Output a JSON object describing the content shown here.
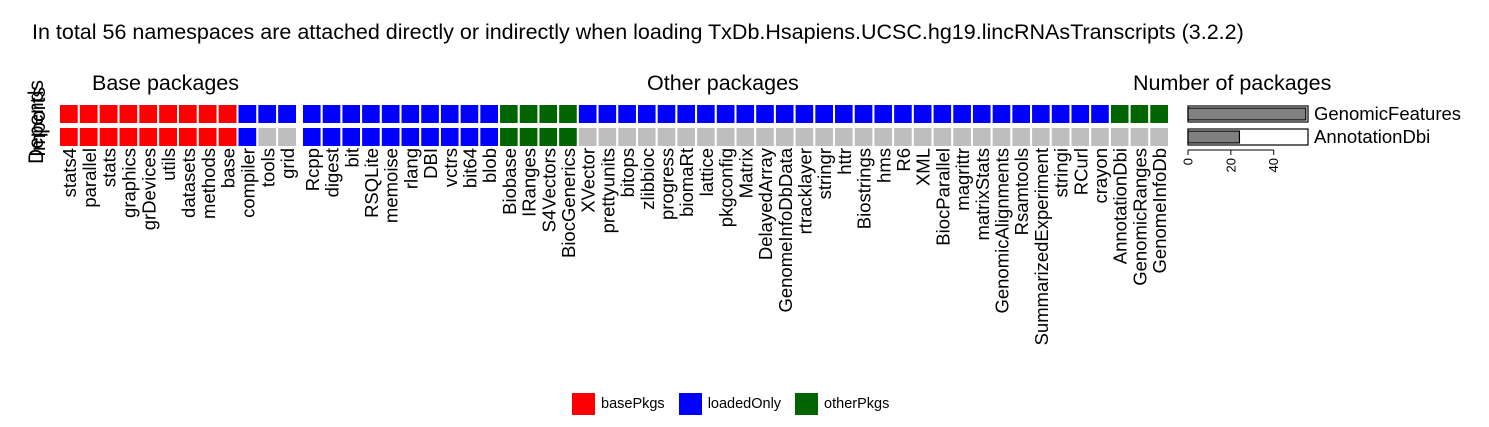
{
  "chart_data": {
    "type": "heatmap",
    "title": "In total 56 namespaces are attached directly or indirectly when loading TxDb.Hsapiens.UCSC.hg19.lincRNAsTranscripts (3.2.2)",
    "rows": [
      "Depends",
      "Imports"
    ],
    "panels": [
      {
        "title": "Base packages",
        "columns": [
          "stats4",
          "parallel",
          "stats",
          "graphics",
          "grDevices",
          "utils",
          "datasets",
          "methods",
          "base",
          "compiler",
          "tools",
          "grid"
        ],
        "cells": [
          [
            "basePkgs",
            "basePkgs",
            "basePkgs",
            "basePkgs",
            "basePkgs",
            "basePkgs",
            "basePkgs",
            "basePkgs",
            "basePkgs",
            "loadedOnly",
            "loadedOnly",
            "loadedOnly"
          ],
          [
            "basePkgs",
            "basePkgs",
            "basePkgs",
            "basePkgs",
            "basePkgs",
            "basePkgs",
            "basePkgs",
            "basePkgs",
            "basePkgs",
            "loadedOnly",
            "none",
            "none"
          ]
        ]
      },
      {
        "title": "Other packages",
        "columns": [
          "Rcpp",
          "digest",
          "bit",
          "RSQLite",
          "memoise",
          "rlang",
          "DBI",
          "vctrs",
          "bit64",
          "blob",
          "Biobase",
          "IRanges",
          "S4Vectors",
          "BiocGenerics",
          "XVector",
          "prettyunits",
          "bitops",
          "zlibbioc",
          "progress",
          "biomaRt",
          "lattice",
          "pkgconfig",
          "Matrix",
          "DelayedArray",
          "GenomeInfoDbData",
          "rtracklayer",
          "stringr",
          "httr",
          "Biostrings",
          "hms",
          "R6",
          "XML",
          "BiocParallel",
          "magrittr",
          "matrixStats",
          "GenomicAlignments",
          "Rsamtools",
          "SummarizedExperiment",
          "stringi",
          "RCurl",
          "crayon",
          "AnnotationDbi",
          "GenomicRanges",
          "GenomeInfoDb"
        ],
        "cells": [
          [
            "loadedOnly",
            "loadedOnly",
            "loadedOnly",
            "loadedOnly",
            "loadedOnly",
            "loadedOnly",
            "loadedOnly",
            "loadedOnly",
            "loadedOnly",
            "loadedOnly",
            "otherPkgs",
            "otherPkgs",
            "otherPkgs",
            "otherPkgs",
            "loadedOnly",
            "loadedOnly",
            "loadedOnly",
            "loadedOnly",
            "loadedOnly",
            "loadedOnly",
            "loadedOnly",
            "loadedOnly",
            "loadedOnly",
            "loadedOnly",
            "loadedOnly",
            "loadedOnly",
            "loadedOnly",
            "loadedOnly",
            "loadedOnly",
            "loadedOnly",
            "loadedOnly",
            "loadedOnly",
            "loadedOnly",
            "loadedOnly",
            "loadedOnly",
            "loadedOnly",
            "loadedOnly",
            "loadedOnly",
            "loadedOnly",
            "loadedOnly",
            "loadedOnly",
            "otherPkgs",
            "otherPkgs",
            "otherPkgs"
          ],
          [
            "loadedOnly",
            "loadedOnly",
            "loadedOnly",
            "loadedOnly",
            "loadedOnly",
            "loadedOnly",
            "loadedOnly",
            "loadedOnly",
            "loadedOnly",
            "loadedOnly",
            "otherPkgs",
            "otherPkgs",
            "otherPkgs",
            "otherPkgs",
            "none",
            "none",
            "none",
            "none",
            "none",
            "none",
            "none",
            "none",
            "none",
            "none",
            "none",
            "none",
            "none",
            "none",
            "none",
            "none",
            "none",
            "none",
            "none",
            "none",
            "none",
            "none",
            "none",
            "none",
            "none",
            "none",
            "none",
            "none",
            "none",
            "none"
          ]
        ]
      }
    ],
    "colors": {
      "basePkgs": "#ff0000",
      "loadedOnly": "#0000ff",
      "otherPkgs": "#006400",
      "none": "#bebebe"
    },
    "legend": {
      "placement": "bottom",
      "items": [
        {
          "key": "basePkgs",
          "label": "basePkgs"
        },
        {
          "key": "loadedOnly",
          "label": "loadedOnly"
        },
        {
          "key": "otherPkgs",
          "label": "otherPkgs"
        }
      ]
    },
    "bar_panel": {
      "type": "bar",
      "orientation": "horizontal",
      "title": "Number of packages",
      "categories": [
        "GenomicFeatures",
        "AnnotationDbi"
      ],
      "values": [
        55,
        24
      ],
      "xlim": [
        0,
        56
      ],
      "xticks": [
        0,
        20,
        40
      ],
      "bar_color": "#808080"
    }
  }
}
